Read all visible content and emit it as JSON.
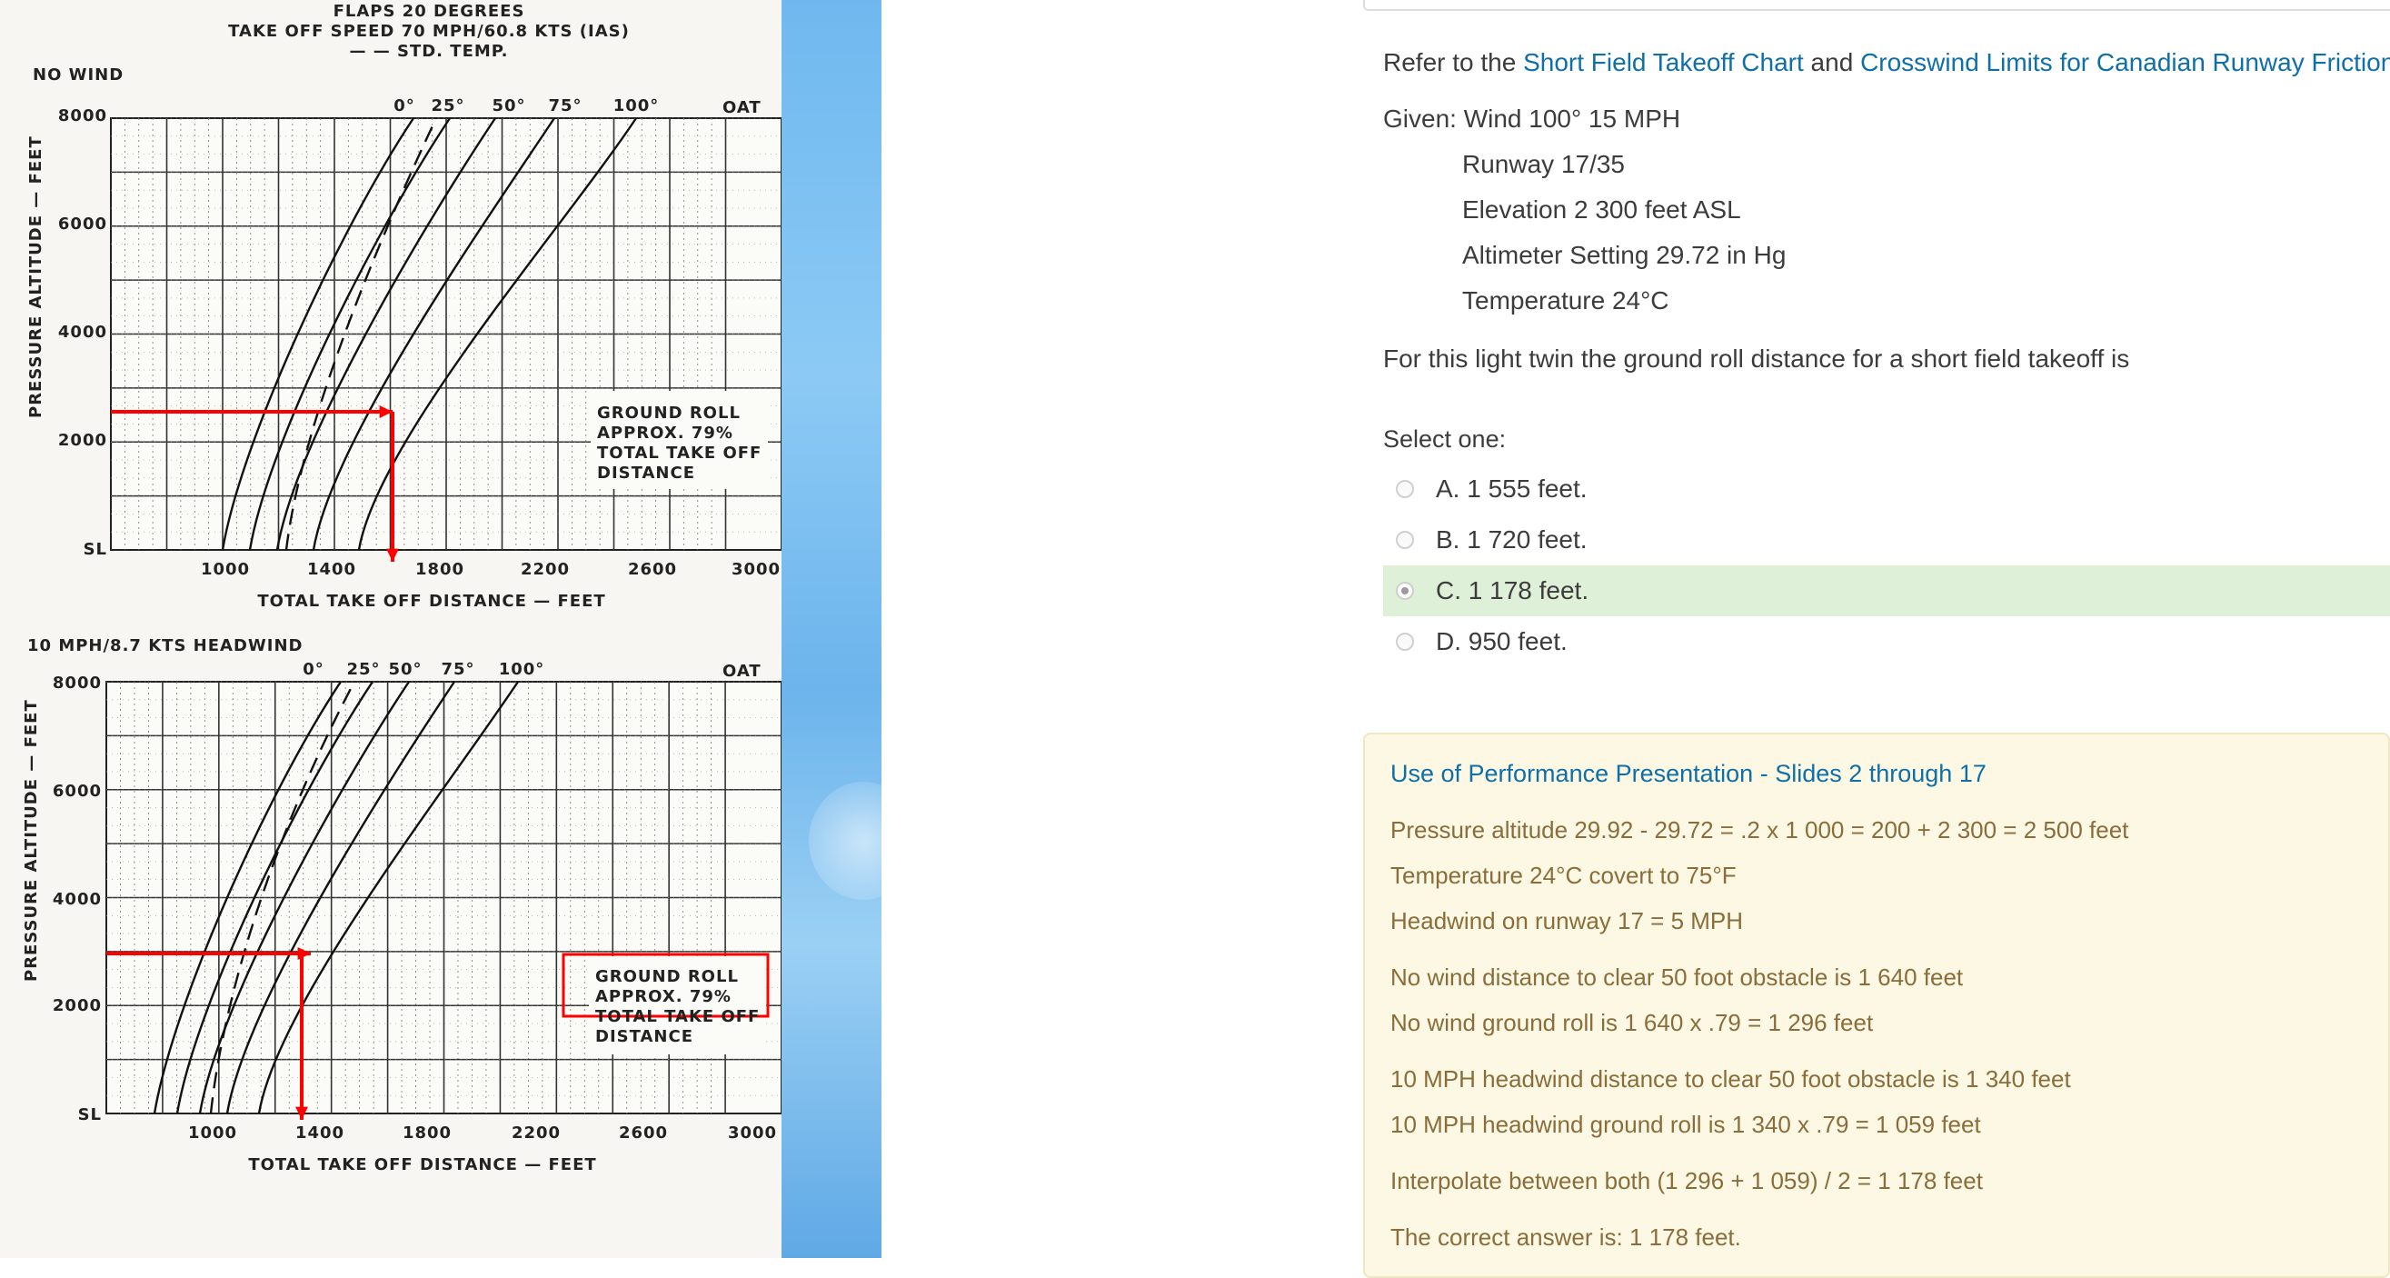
{
  "chart_image": {
    "top": {
      "header": [
        "FLAPS 20 DEGREES",
        "TAKE OFF SPEED 70 MPH/60.8 KTS (IAS)",
        "— — STD. TEMP."
      ],
      "wind_label": "NO WIND",
      "y_label": "PRESSURE ALTITUDE — FEET",
      "y_ticks": [
        "8000",
        "6000",
        "4000",
        "2000",
        "SL"
      ],
      "oat_ticks": [
        "0°",
        "25°",
        "50°",
        "75°",
        "100°"
      ],
      "oat_label": "OAT",
      "x_ticks": [
        "1000",
        "1400",
        "1800",
        "2200",
        "2600",
        "3000"
      ],
      "x_label": "TOTAL TAKE OFF DISTANCE — FEET",
      "note": [
        "GROUND ROLL",
        "APPROX. 79%",
        "TOTAL TAKE OFF",
        "DISTANCE"
      ]
    },
    "bottom": {
      "wind_label": "10 MPH/8.7 KTS HEADWIND",
      "y_label": "PRESSURE ALTITUDE — FEET",
      "y_ticks": [
        "8000",
        "6000",
        "4000",
        "2000",
        "SL"
      ],
      "oat_ticks": [
        "0°",
        "25°",
        "50°",
        "75°",
        "100°"
      ],
      "oat_label": "OAT",
      "x_ticks": [
        "1000",
        "1400",
        "1800",
        "2200",
        "2600",
        "3000"
      ],
      "x_label": "TOTAL TAKE OFF DISTANCE — FEET",
      "note": [
        "GROUND ROLL",
        "APPROX. 79%",
        "TOTAL TAKE OFF",
        "DISTANCE"
      ]
    }
  },
  "question": {
    "refer_prefix": "Refer to the ",
    "link1": "Short Field Takeoff Chart",
    "refer_and": " and ",
    "link2": "Crosswind Limits for Canadian Runway Friction Index",
    "given": [
      "Given: Wind 100° 15 MPH",
      "Runway 17/35",
      "Elevation 2 300 feet ASL",
      "Altimeter Setting 29.72 in Hg",
      "Temperature 24°C"
    ],
    "prompt": "For this light twin the ground roll distance for a short field takeoff is"
  },
  "select_label": "Select one:",
  "answers": [
    {
      "label": "A. 1 555 feet.",
      "selected": false
    },
    {
      "label": "B. 1 720 feet.",
      "selected": false
    },
    {
      "label": "C. 1 178 feet.",
      "selected": true
    },
    {
      "label": "D. 950 feet.",
      "selected": false
    }
  ],
  "feedback": {
    "link": "Use of Performance Presentation - Slides 2 through 17",
    "lines": [
      "Pressure altitude 29.92 - 29.72 = .2 x 1 000 = 200 + 2 300 = 2 500 feet",
      "Temperature 24°C covert to 75°F",
      "Headwind on runway 17 = 5 MPH",
      "",
      "No wind distance to clear 50 foot obstacle is 1 640 feet",
      "No wind ground roll is 1 640 x .79 = 1 296 feet",
      "",
      "10 MPH headwind distance to clear 50 foot obstacle is 1 340 feet",
      "10 MPH headwind ground roll is 1 340 x .79 = 1 059 feet",
      "",
      "Interpolate between both (1 296 + 1 059) / 2 = 1 178 feet",
      "",
      "The correct answer is: 1 178 feet."
    ]
  },
  "colors": {
    "link": "#0f6fa8",
    "feedback_text": "#8a6d3b",
    "feedback_bg": "#fcf8e3",
    "selected_bg": "#dff0d8",
    "annotation_red": "#ff0000"
  }
}
